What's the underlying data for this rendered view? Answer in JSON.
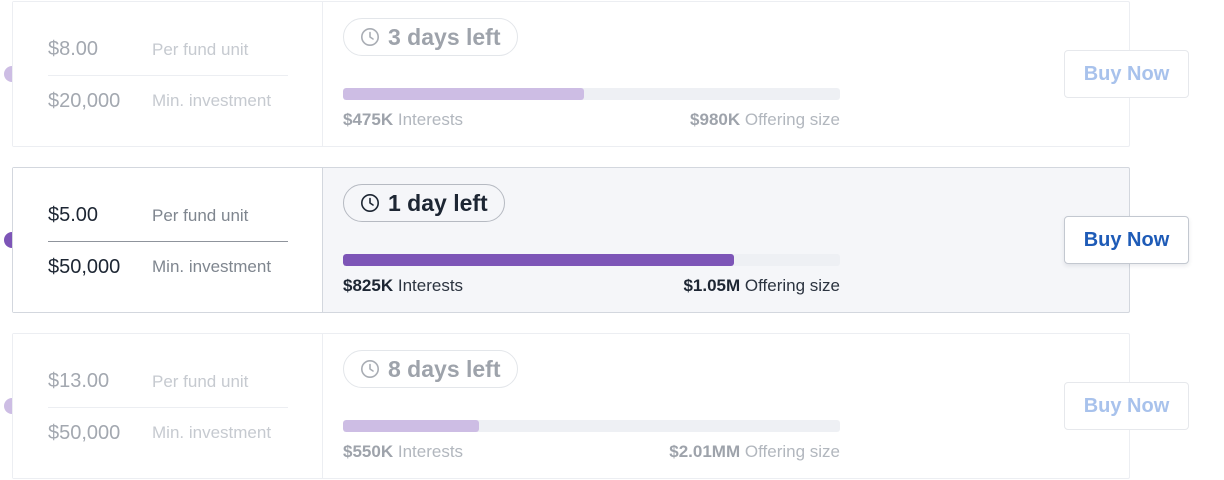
{
  "colors": {
    "accent_purple": "#7d55b7",
    "light_purple": "#cdbde4",
    "track": "#eef0f4",
    "buy_blue": "#1e5bb7"
  },
  "offers": [
    {
      "state": "faded",
      "unit_price": "$8.00",
      "unit_price_label": "Per fund unit",
      "min_investment": "$20,000",
      "min_investment_label": "Min. investment",
      "time_icon": "clock-icon",
      "time_left": "3 days left",
      "progress_fraction": 0.485,
      "interests_value": "$475K",
      "interests_label": "Interests",
      "offering_value": "$980K",
      "offering_label": "Offering size",
      "buy_label": "Buy Now"
    },
    {
      "state": "active",
      "unit_price": "$5.00",
      "unit_price_label": "Per fund unit",
      "min_investment": "$50,000",
      "min_investment_label": "Min. investment",
      "time_icon": "clock-icon",
      "time_left": "1 day left",
      "progress_fraction": 0.786,
      "interests_value": "$825K",
      "interests_label": "Interests",
      "offering_value": "$1.05M",
      "offering_label": "Offering size",
      "buy_label": "Buy Now"
    },
    {
      "state": "faded",
      "unit_price": "$13.00",
      "unit_price_label": "Per fund unit",
      "min_investment": "$50,000",
      "min_investment_label": "Min. investment",
      "time_icon": "clock-icon",
      "time_left": "8 days left",
      "progress_fraction": 0.274,
      "interests_value": "$550K",
      "interests_label": "Interests",
      "offering_value": "$2.01MM",
      "offering_label": "Offering size",
      "buy_label": "Buy Now"
    }
  ]
}
